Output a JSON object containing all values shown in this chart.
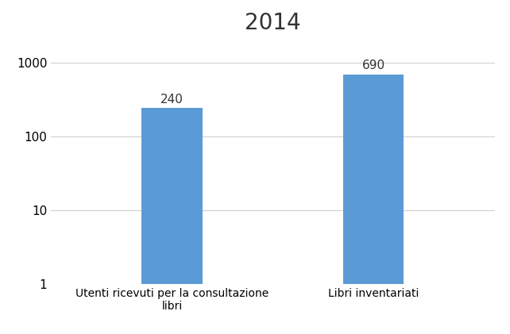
{
  "title": "2014",
  "categories": [
    "Utenti ricevuti per la consultazione\nlibri",
    "Libri inventariati"
  ],
  "values": [
    240,
    690
  ],
  "bar_color": "#5B9BD5",
  "bar_labels": [
    "240",
    "690"
  ],
  "ylim": [
    1,
    2000
  ],
  "yticks": [
    1,
    10,
    100,
    1000
  ],
  "ytick_labels": [
    "1",
    "10",
    "100",
    "1000"
  ],
  "xlim": [
    -0.6,
    1.6
  ],
  "title_fontsize": 20,
  "tick_fontsize": 11,
  "label_fontsize": 10,
  "bar_label_fontsize": 11,
  "bar_width": 0.3,
  "background_color": "#ffffff",
  "grid_color": "#d0d0d0"
}
